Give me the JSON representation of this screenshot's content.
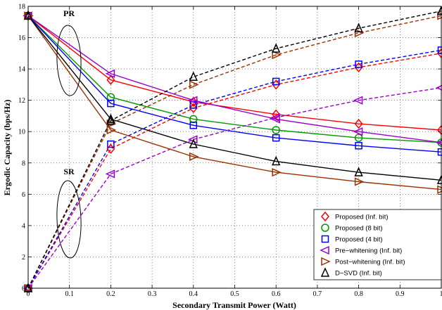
{
  "chart_data": {
    "type": "line",
    "xlabel": "Secondary Transmit Power (Watt)",
    "ylabel": "Ergodic Capacity (bps/Hz)",
    "xlim": [
      0,
      1
    ],
    "ylim": [
      0,
      18
    ],
    "xticks": [
      "0",
      "0.1",
      "0.2",
      "0.3",
      "0.4",
      "0.5",
      "0.6",
      "0.7",
      "0.8",
      "0.9",
      "1"
    ],
    "yticks": [
      "0",
      "2",
      "4",
      "6",
      "8",
      "10",
      "12",
      "14",
      "16",
      "18"
    ],
    "grid": true,
    "legend_position": "bottom-right",
    "x": [
      0,
      0.2,
      0.4,
      0.6,
      0.8,
      1.0
    ],
    "series": [
      {
        "name": "Proposed (Inf. bit)",
        "color": "#ff0000",
        "marker": "diamond",
        "pr": [
          17.4,
          13.3,
          11.9,
          11.1,
          10.5,
          10.1
        ],
        "sr": [
          0.0,
          8.9,
          11.5,
          13.0,
          14.1,
          15.0
        ]
      },
      {
        "name": "Proposed (8 bit)",
        "color": "#009900",
        "marker": "circle",
        "pr": [
          17.4,
          12.2,
          10.8,
          10.1,
          9.6,
          9.3
        ],
        "sr": null
      },
      {
        "name": "Proposed (4 bit)",
        "color": "#0000ff",
        "marker": "square",
        "pr": [
          17.4,
          11.8,
          10.4,
          9.6,
          9.1,
          8.7
        ],
        "sr": [
          0.0,
          9.2,
          11.7,
          13.2,
          14.3,
          15.2
        ]
      },
      {
        "name": "Pre−whitening (Inf. bit)",
        "color": "#9900cc",
        "marker": "triangle-left",
        "pr": [
          17.4,
          13.7,
          12.0,
          10.8,
          10.0,
          9.3
        ],
        "sr": [
          0.0,
          7.3,
          9.5,
          10.9,
          12.0,
          12.8
        ]
      },
      {
        "name": "Post−whitening (Inf. bit)",
        "color": "#993300",
        "marker": "triangle-right",
        "pr": [
          17.4,
          10.1,
          8.4,
          7.4,
          6.8,
          6.3
        ],
        "sr": [
          0.0,
          10.5,
          13.0,
          14.9,
          16.3,
          17.4
        ]
      },
      {
        "name": "D−SVD (Inf. bit)",
        "color": "#000000",
        "marker": "triangle-up",
        "pr": [
          17.4,
          10.8,
          9.2,
          8.1,
          7.4,
          6.9
        ],
        "sr": [
          0.0,
          10.7,
          13.5,
          15.3,
          16.6,
          17.7
        ]
      }
    ],
    "annotations": [
      {
        "text": "PR"
      },
      {
        "text": "SR"
      }
    ]
  }
}
